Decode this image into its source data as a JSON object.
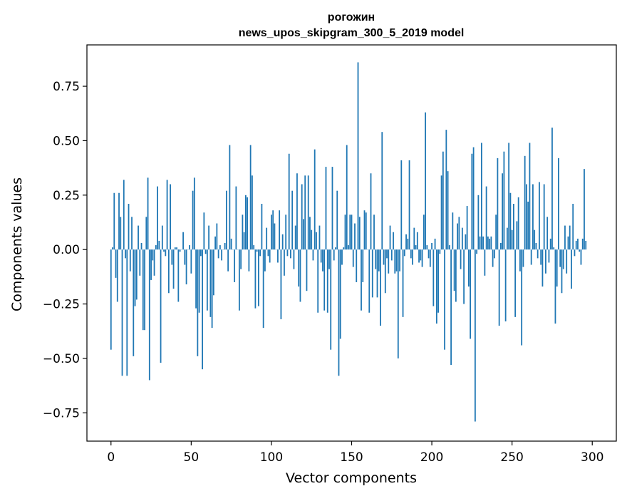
{
  "chart_data": {
    "type": "bar",
    "title": "рогожин",
    "subtitle": "news_upos_skipgram_300_5_2019 model",
    "xlabel": "Vector components",
    "ylabel": "Components values",
    "xlim": [
      -15,
      315
    ],
    "ylim": [
      -0.88,
      0.94
    ],
    "xticks": [
      0,
      50,
      100,
      150,
      200,
      250,
      300
    ],
    "yticks": [
      -0.75,
      -0.5,
      -0.25,
      0.0,
      0.25,
      0.5,
      0.75
    ],
    "ytick_labels": [
      "−0.75",
      "−0.50",
      "−0.25",
      "0.00",
      "0.25",
      "0.50",
      "0.75"
    ],
    "color": "#1f77b4",
    "grid": false,
    "values": [
      -0.46,
      0.01,
      0.26,
      -0.13,
      -0.24,
      0.26,
      0.15,
      -0.58,
      0.32,
      -0.04,
      -0.58,
      0.21,
      -0.1,
      0.15,
      -0.49,
      -0.26,
      -0.23,
      0.11,
      -0.12,
      0.03,
      -0.37,
      -0.37,
      0.15,
      0.33,
      -0.6,
      -0.14,
      -0.05,
      -0.12,
      0.02,
      0.29,
      0.04,
      -0.52,
      0.11,
      -0.01,
      -0.03,
      0.32,
      -0.2,
      0.3,
      -0.07,
      -0.18,
      0.01,
      0.01,
      -0.24,
      -0.01,
      0.0,
      0.08,
      -0.07,
      -0.16,
      0.0,
      0.02,
      -0.11,
      0.27,
      0.33,
      -0.27,
      -0.49,
      -0.29,
      -0.03,
      -0.55,
      0.17,
      -0.02,
      -0.28,
      0.11,
      -0.31,
      -0.36,
      -0.21,
      0.06,
      0.12,
      -0.04,
      0.02,
      -0.05,
      0.0,
      0.03,
      0.27,
      -0.1,
      0.48,
      0.05,
      0.0,
      -0.15,
      0.29,
      0.0,
      -0.28,
      -0.09,
      0.16,
      0.08,
      0.25,
      0.24,
      -0.1,
      0.48,
      0.34,
      0.02,
      -0.27,
      -0.01,
      -0.26,
      -0.03,
      0.21,
      -0.36,
      -0.1,
      0.1,
      -0.03,
      -0.06,
      0.16,
      0.18,
      0.12,
      0.0,
      -0.06,
      0.18,
      -0.32,
      0.07,
      -0.12,
      0.16,
      -0.03,
      0.44,
      -0.04,
      0.27,
      -0.09,
      0.11,
      0.35,
      -0.17,
      -0.24,
      0.3,
      0.14,
      0.34,
      -0.19,
      0.34,
      0.15,
      0.09,
      -0.05,
      0.46,
      0.08,
      -0.29,
      0.11,
      -0.06,
      -0.1,
      -0.28,
      0.38,
      -0.29,
      -0.09,
      -0.46,
      0.38,
      -0.05,
      0.01,
      0.27,
      -0.58,
      -0.41,
      -0.07,
      0.01,
      0.16,
      0.48,
      0.02,
      0.16,
      0.16,
      -0.08,
      0.12,
      -0.15,
      0.86,
      0.15,
      -0.28,
      -0.15,
      0.18,
      0.17,
      0.0,
      -0.29,
      0.35,
      -0.22,
      0.16,
      -0.09,
      -0.22,
      -0.1,
      -0.35,
      0.54,
      -0.07,
      -0.2,
      -0.04,
      -0.11,
      0.11,
      -0.05,
      0.08,
      -0.11,
      -0.1,
      -0.5,
      -0.1,
      0.41,
      -0.31,
      -0.03,
      0.07,
      0.05,
      0.41,
      -0.04,
      -0.07,
      0.1,
      0.02,
      0.08,
      -0.06,
      -0.05,
      -0.08,
      0.16,
      0.63,
      0.02,
      -0.04,
      -0.08,
      0.03,
      -0.26,
      0.05,
      -0.34,
      -0.29,
      -0.02,
      0.34,
      0.45,
      -0.46,
      0.55,
      0.36,
      0.02,
      -0.53,
      0.17,
      -0.19,
      -0.24,
      0.12,
      0.15,
      -0.09,
      0.1,
      -0.25,
      0.07,
      0.2,
      -0.17,
      -0.41,
      0.44,
      0.47,
      -0.79,
      -0.02,
      0.25,
      0.06,
      0.49,
      0.06,
      -0.12,
      0.29,
      0.06,
      0.05,
      0.06,
      -0.08,
      -0.04,
      0.16,
      0.42,
      -0.35,
      0.03,
      0.35,
      0.45,
      -0.33,
      0.1,
      0.49,
      0.26,
      0.09,
      0.21,
      -0.31,
      0.13,
      0.24,
      -0.1,
      -0.44,
      -0.08,
      0.43,
      0.3,
      0.22,
      0.49,
      -0.07,
      0.3,
      0.09,
      0.03,
      -0.04,
      0.31,
      -0.07,
      -0.17,
      0.3,
      -0.11,
      0.15,
      -0.06,
      0.05,
      0.56,
      0.01,
      -0.34,
      -0.17,
      0.42,
      -0.08,
      -0.2,
      -0.09,
      0.11,
      -0.11,
      0.06,
      0.11,
      -0.18,
      0.21,
      -0.03,
      0.04,
      0.05,
      -0.01,
      -0.07,
      0.05,
      0.37,
      0.04
    ]
  }
}
